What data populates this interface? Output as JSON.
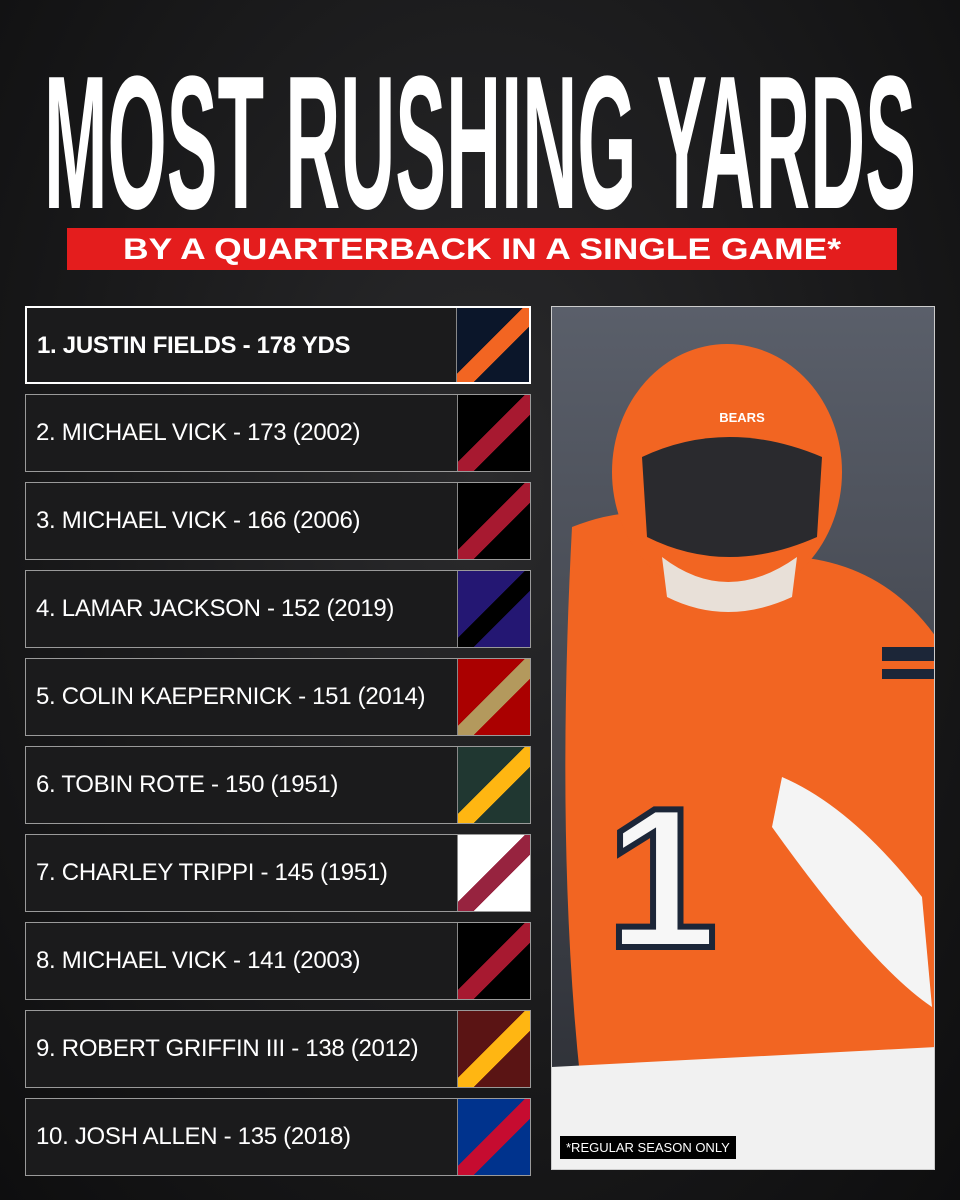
{
  "header": {
    "title": "MOST RUSHING YARDS",
    "subtitle": "BY A QUARTERBACK IN A SINGLE GAME*"
  },
  "list": {
    "rows": [
      "1. JUSTIN FIELDS - 178 YDS",
      "2. MICHAEL VICK - 173 (2002)",
      "3. MICHAEL VICK - 166 (2006)",
      "4. LAMAR JACKSON - 152 (2019)",
      "5. COLIN KAEPERNICK - 151 (2014)",
      "6. TOBIN ROTE - 150 (1951)",
      "7. CHARLEY TRIPPI - 145 (1951)",
      "8. MICHAEL VICK - 141 (2003)",
      "9. ROBERT GRIFFIN III - 138 (2012)",
      "10. JOSH ALLEN - 135 (2018)"
    ]
  },
  "photo": {
    "footnote": "*REGULAR SEASON ONLY",
    "jersey_number": "1",
    "helmet_text": "BEARS"
  }
}
